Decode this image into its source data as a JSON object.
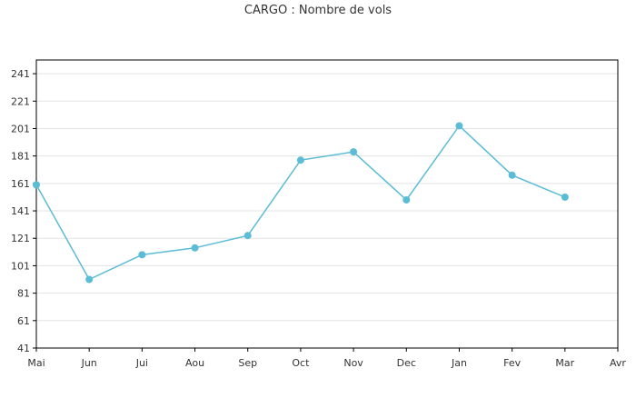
{
  "chart_data": {
    "type": "line",
    "title": "CARGO : Nombre de vols",
    "xlabel": "",
    "ylabel": "",
    "categories": [
      "Mai",
      "Jun",
      "Jui",
      "Aou",
      "Sep",
      "Oct",
      "Nov",
      "Dec",
      "Jan",
      "Fev",
      "Mar",
      "Avr"
    ],
    "series": [
      {
        "values": [
          160,
          91,
          109,
          114,
          123,
          178,
          184,
          149,
          203,
          167,
          151,
          null
        ],
        "color": "#5bbcd6"
      }
    ],
    "ylim": [
      41,
      251
    ],
    "yticks": [
      41,
      61,
      81,
      101,
      121,
      141,
      161,
      181,
      201,
      221,
      241
    ],
    "grid": true,
    "legend": "none"
  }
}
